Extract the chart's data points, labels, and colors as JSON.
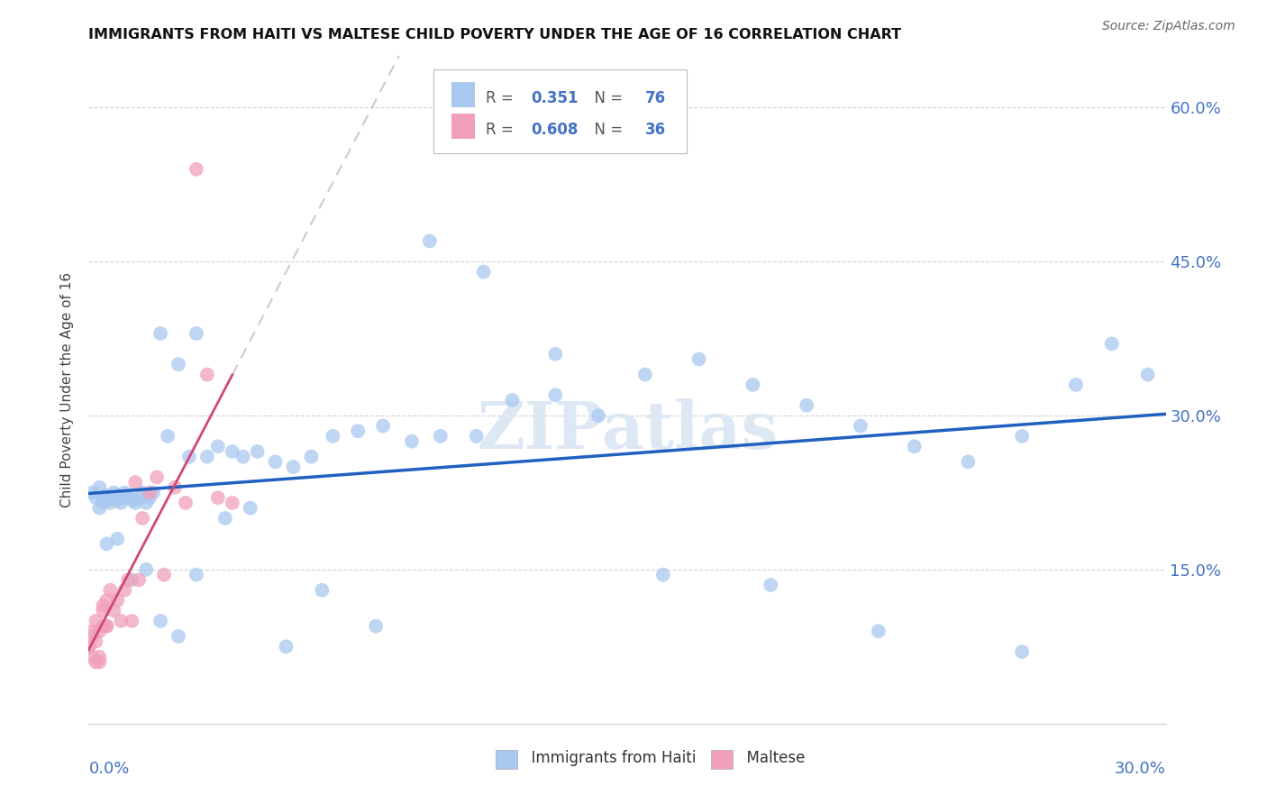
{
  "title": "IMMIGRANTS FROM HAITI VS MALTESE CHILD POVERTY UNDER THE AGE OF 16 CORRELATION CHART",
  "source": "Source: ZipAtlas.com",
  "ylabel": "Child Poverty Under the Age of 16",
  "xlim": [
    0.0,
    0.3
  ],
  "ylim": [
    0.0,
    0.65
  ],
  "legend_haiti_R": "0.351",
  "legend_haiti_N": "76",
  "legend_maltese_R": "0.608",
  "legend_maltese_N": "36",
  "color_haiti": "#a8c8f0",
  "color_maltese": "#f0a0b8",
  "color_trendline_haiti": "#2060c0",
  "color_trendline_maltese": "#d04878",
  "color_trendline_maltese_ext": "#d8a0b8",
  "background_color": "#ffffff",
  "axis_label_color": "#4472c4",
  "watermark": "ZIPatlas",
  "haiti_x": [
    0.001,
    0.002,
    0.003,
    0.003,
    0.004,
    0.004,
    0.005,
    0.005,
    0.006,
    0.007,
    0.007,
    0.008,
    0.008,
    0.009,
    0.01,
    0.01,
    0.011,
    0.012,
    0.013,
    0.014,
    0.015,
    0.016,
    0.017,
    0.018,
    0.02,
    0.022,
    0.025,
    0.028,
    0.03,
    0.033,
    0.036,
    0.04,
    0.043,
    0.047,
    0.052,
    0.057,
    0.062,
    0.068,
    0.075,
    0.082,
    0.09,
    0.098,
    0.108,
    0.118,
    0.13,
    0.142,
    0.155,
    0.17,
    0.185,
    0.2,
    0.215,
    0.23,
    0.245,
    0.26,
    0.275,
    0.285,
    0.295,
    0.005,
    0.008,
    0.012,
    0.016,
    0.02,
    0.025,
    0.03,
    0.038,
    0.045,
    0.055,
    0.065,
    0.08,
    0.095,
    0.11,
    0.13,
    0.16,
    0.19,
    0.22,
    0.26
  ],
  "haiti_y": [
    0.225,
    0.22,
    0.21,
    0.23,
    0.215,
    0.22,
    0.218,
    0.222,
    0.215,
    0.22,
    0.225,
    0.218,
    0.222,
    0.215,
    0.22,
    0.225,
    0.222,
    0.218,
    0.215,
    0.22,
    0.225,
    0.215,
    0.22,
    0.225,
    0.38,
    0.28,
    0.35,
    0.26,
    0.38,
    0.26,
    0.27,
    0.265,
    0.26,
    0.265,
    0.255,
    0.25,
    0.26,
    0.28,
    0.285,
    0.29,
    0.275,
    0.28,
    0.28,
    0.315,
    0.32,
    0.3,
    0.34,
    0.355,
    0.33,
    0.31,
    0.29,
    0.27,
    0.255,
    0.28,
    0.33,
    0.37,
    0.34,
    0.175,
    0.18,
    0.14,
    0.15,
    0.1,
    0.085,
    0.145,
    0.2,
    0.21,
    0.075,
    0.13,
    0.095,
    0.47,
    0.44,
    0.36,
    0.145,
    0.135,
    0.09,
    0.07
  ],
  "maltese_x": [
    0.0,
    0.001,
    0.001,
    0.002,
    0.002,
    0.003,
    0.003,
    0.004,
    0.004,
    0.005,
    0.005,
    0.006,
    0.007,
    0.008,
    0.009,
    0.01,
    0.011,
    0.012,
    0.013,
    0.014,
    0.015,
    0.017,
    0.019,
    0.021,
    0.024,
    0.027,
    0.03,
    0.033,
    0.036,
    0.04,
    0.0,
    0.001,
    0.002,
    0.003,
    0.004,
    0.005
  ],
  "maltese_y": [
    0.075,
    0.065,
    0.085,
    0.1,
    0.06,
    0.09,
    0.06,
    0.095,
    0.115,
    0.12,
    0.095,
    0.13,
    0.11,
    0.12,
    0.1,
    0.13,
    0.14,
    0.1,
    0.235,
    0.14,
    0.2,
    0.225,
    0.24,
    0.145,
    0.23,
    0.215,
    0.54,
    0.34,
    0.22,
    0.215,
    0.075,
    0.09,
    0.08,
    0.065,
    0.11,
    0.095
  ]
}
